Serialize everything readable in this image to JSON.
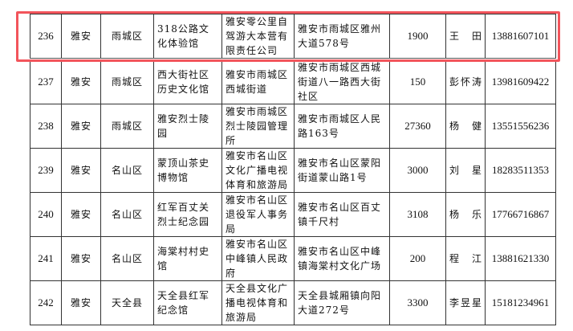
{
  "highlight_color": "#f2545b",
  "rows": [
    {
      "no": "236",
      "city": "雅安",
      "district": "雨城区",
      "venue": "318公路文化体验馆",
      "operator": "雅安零公里自驾游大本营有限责任公司",
      "address": "雅安市雨城区雅州大道578号",
      "area": "1900",
      "contact": "王 田",
      "phone": "13881607101"
    },
    {
      "no": "237",
      "city": "雅安",
      "district": "雨城区",
      "venue": "西大街社区历史文化馆",
      "operator": "雅安市雨城区西城街道",
      "address": "雅安市雨城区西城街道八一路西大街社区",
      "area": "150",
      "contact": "彭怀涛",
      "phone": "13981609422"
    },
    {
      "no": "238",
      "city": "雅安",
      "district": "雨城区",
      "venue": "雅安烈士陵园",
      "operator": "雅安市雨城区烈士陵园管理所",
      "address": "雅安市雨城区人民路163号",
      "area": "27360",
      "contact": "杨 健",
      "phone": "13551556236"
    },
    {
      "no": "239",
      "city": "雅安",
      "district": "名山区",
      "venue": "蒙顶山茶史博物馆",
      "operator": "雅安市名山区文化广播电视体育和旅游局",
      "address": "雅安市名山区蒙阳街道蒙山路1号",
      "area": "3000",
      "contact": "刘 星",
      "phone": "18283511353"
    },
    {
      "no": "240",
      "city": "雅安",
      "district": "名山区",
      "venue": "红军百丈关烈士纪念园",
      "operator": "雅安市名山区退役军人事务局",
      "address": "雅安市名山区百丈镇千尺村",
      "area": "3108",
      "contact": "杨 乐",
      "phone": "17766716867"
    },
    {
      "no": "241",
      "city": "雅安",
      "district": "名山区",
      "venue": "海棠村村史馆",
      "operator": "雅安市名山区中峰镇人民政府",
      "address": "雅安市名山区中峰镇海棠村文化广场",
      "area": "200",
      "contact": "程 江",
      "phone": "13881621330"
    },
    {
      "no": "242",
      "city": "雅安",
      "district": "天全县",
      "venue": "天全县红军纪念馆",
      "operator": "天全县文化广播电视体育和旅游局",
      "address": "天全县城厢镇向阳大道272号",
      "area": "3300",
      "contact": "李昱星",
      "phone": "15181234961"
    }
  ]
}
